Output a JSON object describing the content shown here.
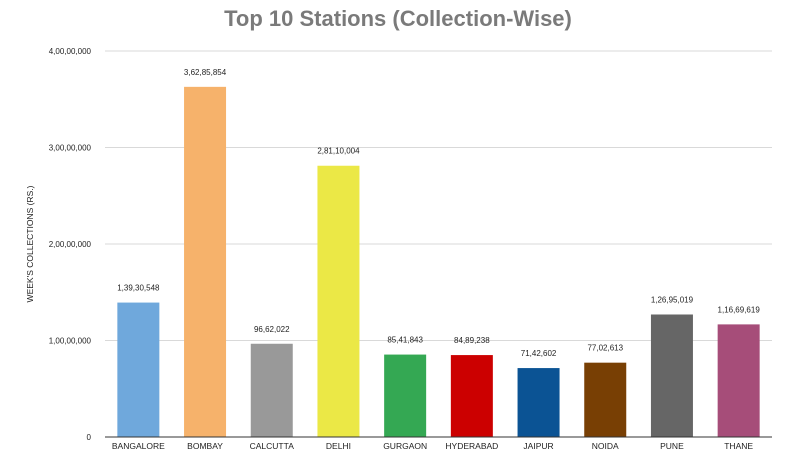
{
  "chart_data": {
    "type": "bar",
    "title": "Top 10 Stations (Collection-Wise)",
    "xlabel": "",
    "ylabel": "WEEK'S COLLECTIONS (RS.)",
    "ylim": [
      0,
      40000000
    ],
    "yticks": [
      0,
      10000000,
      20000000,
      30000000,
      40000000
    ],
    "ytick_labels": [
      "0",
      "1,00,00,000",
      "2,00,00,000",
      "3,00,00,000",
      "4,00,00,000"
    ],
    "grid": true,
    "legend": "none",
    "categories": [
      "BANGALORE",
      "BOMBAY",
      "CALCUTTA",
      "DELHI",
      "GURGAON",
      "HYDERABAD",
      "JAIPUR",
      "NOIDA",
      "PUNE",
      "THANE"
    ],
    "values": [
      13930548,
      36285854,
      9662022,
      28110004,
      8541843,
      8489238,
      7142602,
      7702613,
      12695019,
      11669619
    ],
    "data_labels": [
      "1,39,30,548",
      "3,62,85,854",
      "96,62,022",
      "2,81,10,004",
      "85,41,843",
      "84,89,238",
      "71,42,602",
      "77,02,613",
      "1,26,95,019",
      "1,16,69,619"
    ],
    "colors": [
      "#6fa8dc",
      "#f6b26b",
      "#999999",
      "#ebe846",
      "#34a853",
      "#cc0000",
      "#0b5394",
      "#783f04",
      "#666666",
      "#a64d79"
    ]
  }
}
